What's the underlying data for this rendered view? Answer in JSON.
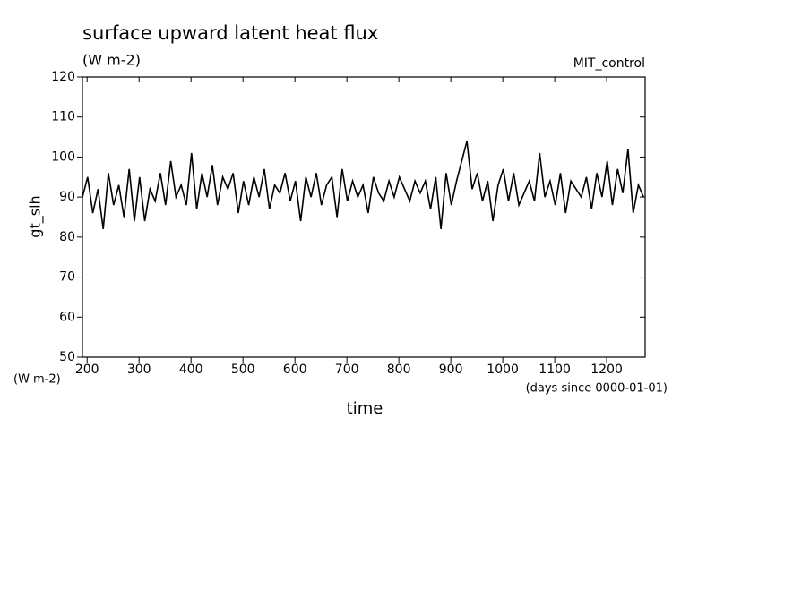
{
  "chart_data": {
    "type": "line",
    "title": "surface upward latent heat flux",
    "subtitle": "(W m-2)",
    "annotation": "MIT_control",
    "y_label": "gt_slh",
    "y_units": "(W m-2)",
    "x_label": "time",
    "x_units": "(days since 0000-01-01)",
    "x": [
      191,
      201,
      211,
      221,
      231,
      241,
      251,
      261,
      271,
      281,
      291,
      301,
      311,
      321,
      331,
      341,
      351,
      361,
      371,
      381,
      391,
      401,
      411,
      421,
      431,
      441,
      451,
      461,
      471,
      481,
      491,
      501,
      511,
      521,
      531,
      541,
      551,
      561,
      571,
      581,
      591,
      601,
      611,
      621,
      631,
      641,
      651,
      661,
      671,
      681,
      691,
      701,
      711,
      721,
      731,
      741,
      751,
      761,
      771,
      781,
      791,
      801,
      811,
      821,
      831,
      841,
      851,
      861,
      871,
      881,
      891,
      901,
      911,
      921,
      931,
      941,
      951,
      961,
      971,
      981,
      991,
      1001,
      1011,
      1021,
      1031,
      1041,
      1051,
      1061,
      1071,
      1081,
      1091,
      1101,
      1111,
      1121,
      1131,
      1141,
      1151,
      1161,
      1171,
      1181,
      1191,
      1201,
      1211,
      1221,
      1231,
      1241,
      1251,
      1261,
      1271
    ],
    "series": [
      {
        "name": "gt_slh",
        "color": "#000000",
        "values": [
          90,
          95,
          86,
          92,
          82,
          96,
          88,
          93,
          85,
          97,
          84,
          95,
          84,
          92,
          89,
          96,
          88,
          99,
          90,
          93,
          88,
          101,
          87,
          96,
          90,
          98,
          88,
          95,
          92,
          96,
          86,
          94,
          88,
          95,
          90,
          97,
          87,
          93,
          91,
          96,
          89,
          94,
          84,
          95,
          90,
          96,
          88,
          93,
          95,
          85,
          97,
          89,
          94,
          90,
          93,
          86,
          95,
          91,
          89,
          94,
          90,
          95,
          92,
          89,
          94,
          91,
          94,
          87,
          95,
          82,
          96,
          88,
          94,
          99,
          104,
          92,
          96,
          89,
          94,
          84,
          93,
          97,
          89,
          96,
          88,
          91,
          94,
          89,
          101,
          90,
          94,
          88,
          96,
          86,
          94,
          92,
          90,
          95,
          87,
          96,
          90,
          99,
          88,
          97,
          91,
          102,
          86,
          93,
          90
        ]
      }
    ],
    "xlim": [
      191,
      1274
    ],
    "xticks": [
      200,
      300,
      400,
      500,
      600,
      700,
      800,
      900,
      1000,
      1100,
      1200
    ],
    "ylim": [
      50,
      120
    ],
    "yticks": [
      50,
      60,
      70,
      80,
      90,
      100,
      110,
      120
    ],
    "grid": false
  }
}
